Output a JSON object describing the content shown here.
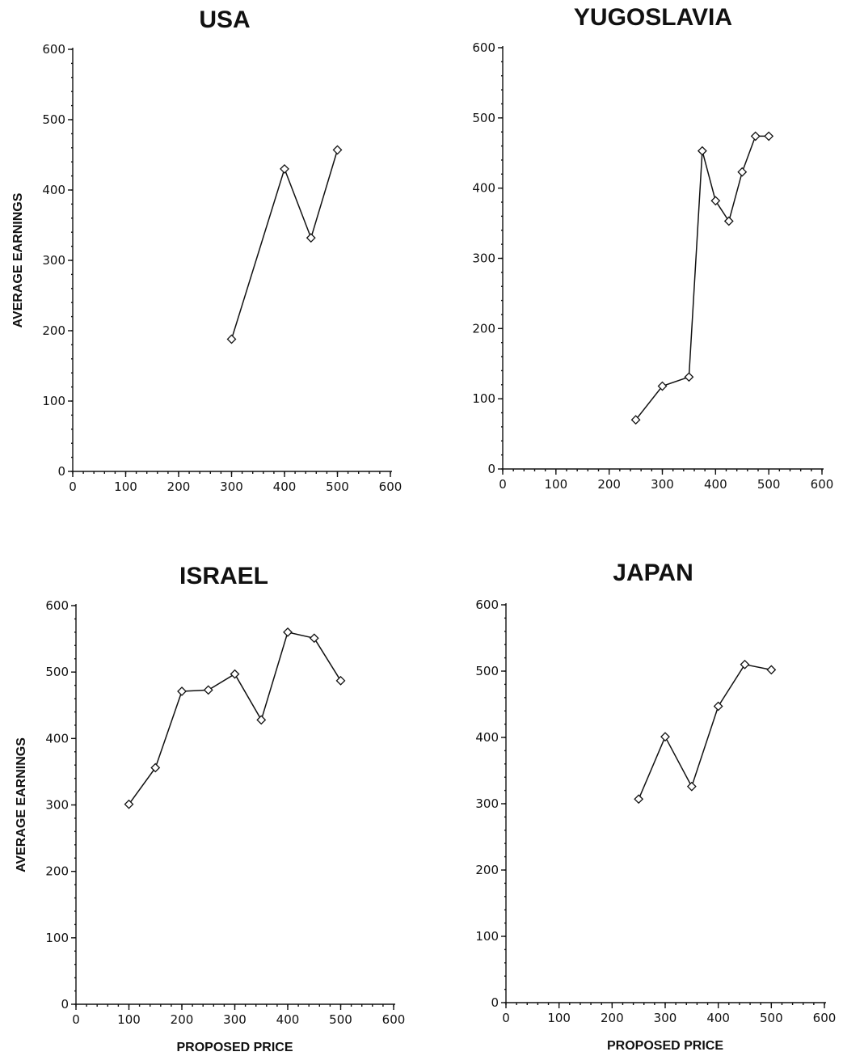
{
  "chart_data": [
    {
      "type": "line",
      "title": "USA",
      "xlabel": "",
      "ylabel": "AVERAGE EARNINGS",
      "xlim": [
        0,
        600
      ],
      "ylim": [
        0,
        600
      ],
      "xticks": [
        0,
        100,
        200,
        300,
        400,
        500,
        600
      ],
      "yticks": [
        0,
        100,
        200,
        300,
        400,
        500,
        600
      ],
      "x": [
        300,
        400,
        450,
        500
      ],
      "y": [
        188,
        430,
        332,
        457
      ],
      "marker": "diamond",
      "grid": false
    },
    {
      "type": "line",
      "title": "YUGOSLAVIA",
      "xlabel": "",
      "ylabel": "",
      "xlim": [
        0,
        600
      ],
      "ylim": [
        0,
        600
      ],
      "xticks": [
        0,
        100,
        200,
        300,
        400,
        500,
        600
      ],
      "yticks": [
        0,
        100,
        200,
        300,
        400,
        500,
        600
      ],
      "x": [
        250,
        300,
        350,
        375,
        400,
        425,
        450,
        475,
        500
      ],
      "y": [
        70,
        118,
        131,
        453,
        382,
        353,
        423,
        474,
        474
      ],
      "marker": "diamond",
      "grid": false
    },
    {
      "type": "line",
      "title": "ISRAEL",
      "xlabel": "PROPOSED PRICE",
      "ylabel": "AVERAGE EARNINGS",
      "xlim": [
        0,
        600
      ],
      "ylim": [
        0,
        600
      ],
      "xticks": [
        0,
        100,
        200,
        300,
        400,
        500,
        600
      ],
      "yticks": [
        0,
        100,
        200,
        300,
        400,
        500,
        600
      ],
      "x": [
        100,
        150,
        200,
        250,
        300,
        350,
        400,
        450,
        500
      ],
      "y": [
        301,
        356,
        471,
        473,
        497,
        428,
        560,
        551,
        487
      ],
      "marker": "diamond",
      "grid": false
    },
    {
      "type": "line",
      "title": "JAPAN",
      "xlabel": "PROPOSED PRICE",
      "ylabel": "",
      "xlim": [
        0,
        600
      ],
      "ylim": [
        0,
        600
      ],
      "xticks": [
        0,
        100,
        200,
        300,
        400,
        500,
        600
      ],
      "yticks": [
        0,
        100,
        200,
        300,
        400,
        500,
        600
      ],
      "x": [
        250,
        300,
        350,
        400,
        450,
        500
      ],
      "y": [
        307,
        401,
        326,
        447,
        510,
        502
      ],
      "marker": "diamond",
      "grid": false
    }
  ]
}
